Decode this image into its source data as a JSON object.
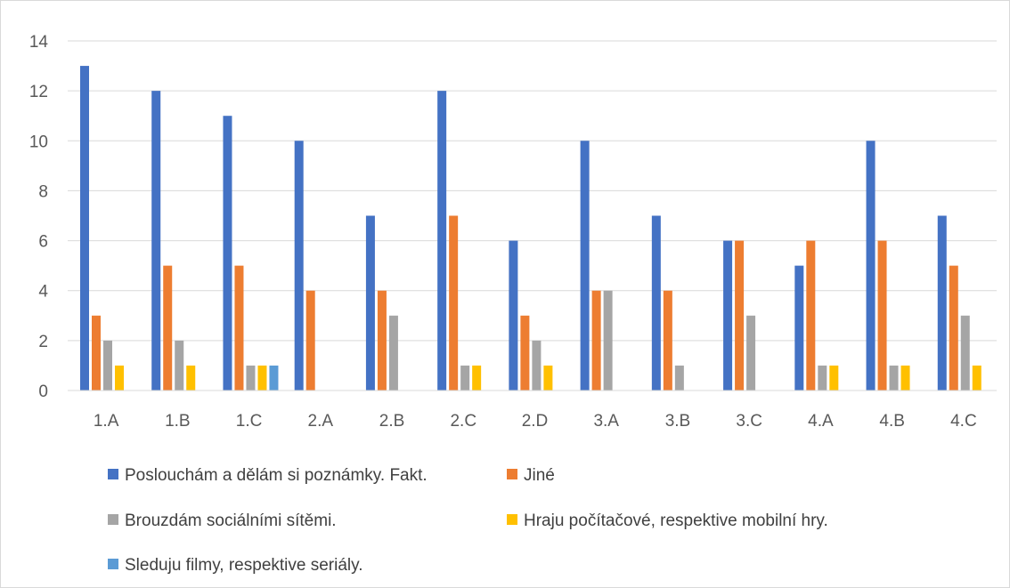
{
  "chart_data": {
    "type": "bar",
    "categories": [
      "1.A",
      "1.B",
      "1.C",
      "2.A",
      "2.B",
      "2.C",
      "2.D",
      "3.A",
      "3.B",
      "3.C",
      "4.A",
      "4.B",
      "4.C"
    ],
    "series": [
      {
        "name": "Poslouchám a dělám si poznámky. Fakt.",
        "color": "#4472c4",
        "values": [
          13,
          12,
          11,
          10,
          7,
          12,
          6,
          10,
          7,
          6,
          5,
          10,
          7
        ]
      },
      {
        "name": "Jiné",
        "color": "#ed7d31",
        "values": [
          3,
          5,
          5,
          4,
          4,
          7,
          3,
          4,
          4,
          6,
          6,
          6,
          5
        ]
      },
      {
        "name": "Brouzdám sociálními sítěmi.",
        "color": "#a5a5a5",
        "values": [
          2,
          2,
          1,
          0,
          3,
          1,
          2,
          4,
          1,
          3,
          1,
          1,
          3
        ]
      },
      {
        "name": "Hraju počítačové, respektive mobilní hry.",
        "color": "#ffc000",
        "values": [
          1,
          1,
          1,
          0,
          0,
          1,
          1,
          0,
          0,
          0,
          1,
          1,
          1
        ]
      },
      {
        "name": "Sleduju filmy, respektive seriály.",
        "color": "#5b9bd5",
        "values": [
          0,
          0,
          1,
          0,
          0,
          0,
          0,
          0,
          0,
          0,
          0,
          0,
          0
        ]
      }
    ],
    "ylim": [
      0,
      14
    ],
    "yticks": [
      0,
      2,
      4,
      6,
      8,
      10,
      12,
      14
    ],
    "grid": true,
    "legend_position": "bottom"
  }
}
